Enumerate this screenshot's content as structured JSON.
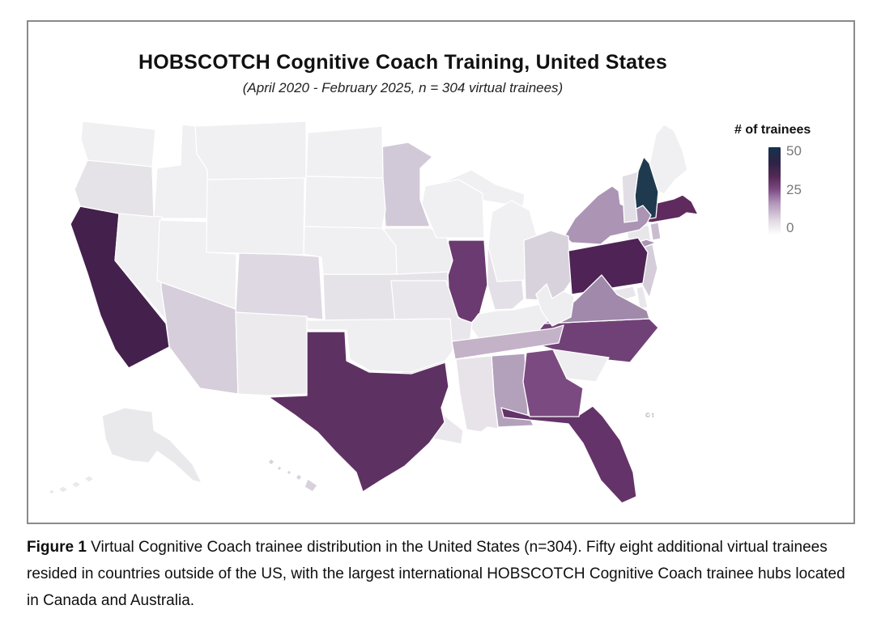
{
  "figure": {
    "title": "HOBSCOTCH Cognitive Coach Training, United States",
    "subtitle": "(April 2020 - February 2025, n = 304 virtual trainees)",
    "watermark": "© t"
  },
  "legend": {
    "title": "# of trainees",
    "ticks": [
      "50",
      "25",
      "0"
    ],
    "scale_min": 0,
    "scale_max": 50,
    "gradient_css_stops": "#ffffff 0%, #ddd3e0 18%, #b295ba 36%, #7c4983 52%, #542a55 66%, #2e2347 82%, #16324c 100%"
  },
  "caption": {
    "label": "Figure 1",
    "text": "  Virtual Cognitive Coach trainee distribution in the United States (n=304). Fifty eight additional virtual trainees resided in countries outside of the US, with the largest international HOBSCOTCH Cognitive Coach trainee hubs located in Canada and Australia."
  },
  "chart_data": {
    "type": "choropleth",
    "region": "United States",
    "title": "HOBSCOTCH Cognitive Coach Training, United States",
    "subtitle": "(April 2020 - February 2025, n = 304 virtual trainees)",
    "legend_title": "# of trainees",
    "scale": {
      "min": 0,
      "max": 50,
      "tick_labels": [
        50,
        25,
        0
      ]
    },
    "note": "state values estimated from legend color scale",
    "states": [
      {
        "code": "AL",
        "name": "Alabama",
        "fill": "#b3a0bb",
        "value_est": 10
      },
      {
        "code": "AK",
        "name": "Alaska",
        "fill": "#e9e8eb",
        "value_est": 1
      },
      {
        "code": "AZ",
        "name": "Arizona",
        "fill": "#d6cedb",
        "value_est": 5
      },
      {
        "code": "AR",
        "name": "Arkansas",
        "fill": "#ddd3de",
        "value_est": 4
      },
      {
        "code": "CA",
        "name": "California",
        "fill": "#44204d",
        "value_est": 40
      },
      {
        "code": "CO",
        "name": "Colorado",
        "fill": "#ded8e2",
        "value_est": 4
      },
      {
        "code": "CT",
        "name": "Connecticut",
        "fill": "#e8e6ea",
        "value_est": 2
      },
      {
        "code": "DE",
        "name": "Delaware",
        "fill": "#e9e7eb",
        "value_est": 2
      },
      {
        "code": "DC",
        "name": "District of Columbia",
        "fill": "#cfc0d4",
        "value_est": 3
      },
      {
        "code": "FL",
        "name": "Florida",
        "fill": "#643369",
        "value_est": 28
      },
      {
        "code": "GA",
        "name": "Georgia",
        "fill": "#7b4a80",
        "value_est": 21
      },
      {
        "code": "HI",
        "name": "Hawaii",
        "fill": "#d9d0de",
        "value_est": 4
      },
      {
        "code": "ID",
        "name": "Idaho",
        "fill": "#f0eff1",
        "value_est": 0
      },
      {
        "code": "IL",
        "name": "Illinois",
        "fill": "#6b3a70",
        "value_est": 26
      },
      {
        "code": "IN",
        "name": "Indiana",
        "fill": "#e4e0e7",
        "value_est": 3
      },
      {
        "code": "IA",
        "name": "Iowa",
        "fill": "#eeedf0",
        "value_est": 1
      },
      {
        "code": "KS",
        "name": "Kansas",
        "fill": "#e6e3e8",
        "value_est": 2
      },
      {
        "code": "KY",
        "name": "Kentucky",
        "fill": "#eeedf0",
        "value_est": 1
      },
      {
        "code": "LA",
        "name": "Louisiana",
        "fill": "#eae8ec",
        "value_est": 1
      },
      {
        "code": "ME",
        "name": "Maine",
        "fill": "#f0eff1",
        "value_est": 1
      },
      {
        "code": "MD",
        "name": "Maryland",
        "fill": "#e8e6ea",
        "value_est": 2
      },
      {
        "code": "MA",
        "name": "Massachusetts",
        "fill": "#5f2a5e",
        "value_est": 33
      },
      {
        "code": "MI",
        "name": "Michigan",
        "fill": "#f0eff1",
        "value_est": 1
      },
      {
        "code": "MN",
        "name": "Minnesota",
        "fill": "#d2c9d8",
        "value_est": 6
      },
      {
        "code": "MS",
        "name": "Mississippi",
        "fill": "#e7e3e9",
        "value_est": 2
      },
      {
        "code": "MO",
        "name": "Missouri",
        "fill": "#eae7ec",
        "value_est": 2
      },
      {
        "code": "MT",
        "name": "Montana",
        "fill": "#f0eff1",
        "value_est": 0
      },
      {
        "code": "NE",
        "name": "Nebraska",
        "fill": "#f0eff1",
        "value_est": 0
      },
      {
        "code": "NV",
        "name": "Nevada",
        "fill": "#efeef0",
        "value_est": 0
      },
      {
        "code": "NH",
        "name": "New Hampshire",
        "fill": "#1f3a4f",
        "value_est": 50
      },
      {
        "code": "NJ",
        "name": "New Jersey",
        "fill": "#d5cdda",
        "value_est": 5
      },
      {
        "code": "NM",
        "name": "New Mexico",
        "fill": "#eceaed",
        "value_est": 1
      },
      {
        "code": "NY",
        "name": "New York",
        "fill": "#ab94b4",
        "value_est": 13
      },
      {
        "code": "NC",
        "name": "North Carolina",
        "fill": "#704177",
        "value_est": 24
      },
      {
        "code": "ND",
        "name": "North Dakota",
        "fill": "#f0eff1",
        "value_est": 0
      },
      {
        "code": "OH",
        "name": "Ohio",
        "fill": "#d8d2dc",
        "value_est": 5
      },
      {
        "code": "OK",
        "name": "Oklahoma",
        "fill": "#efeef0",
        "value_est": 1
      },
      {
        "code": "OR",
        "name": "Oregon",
        "fill": "#e6e3e8",
        "value_est": 3
      },
      {
        "code": "PA",
        "name": "Pennsylvania",
        "fill": "#4f2356",
        "value_est": 36
      },
      {
        "code": "RI",
        "name": "Rhode Island",
        "fill": "#c9bccf",
        "value_est": 6
      },
      {
        "code": "SC",
        "name": "South Carolina",
        "fill": "#eeedef",
        "value_est": 1
      },
      {
        "code": "SD",
        "name": "South Dakota",
        "fill": "#f0eff1",
        "value_est": 0
      },
      {
        "code": "TN",
        "name": "Tennessee",
        "fill": "#c3b2c8",
        "value_est": 8
      },
      {
        "code": "TX",
        "name": "Texas",
        "fill": "#5e3163",
        "value_est": 30
      },
      {
        "code": "UT",
        "name": "Utah",
        "fill": "#f0eff1",
        "value_est": 0
      },
      {
        "code": "VT",
        "name": "Vermont",
        "fill": "#e2dee6",
        "value_est": 3
      },
      {
        "code": "VA",
        "name": "Virginia",
        "fill": "#a089aa",
        "value_est": 14
      },
      {
        "code": "WA",
        "name": "Washington",
        "fill": "#f0eff1",
        "value_est": 1
      },
      {
        "code": "WV",
        "name": "West Virginia",
        "fill": "#eeedf0",
        "value_est": 1
      },
      {
        "code": "WI",
        "name": "Wisconsin",
        "fill": "#f0eff1",
        "value_est": 1
      },
      {
        "code": "WY",
        "name": "Wyoming",
        "fill": "#f0eff1",
        "value_est": 0
      }
    ]
  }
}
